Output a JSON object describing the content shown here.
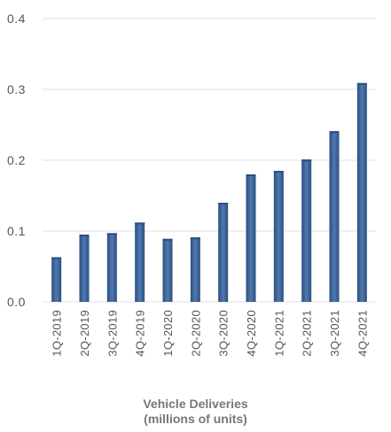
{
  "chart_data": {
    "type": "bar",
    "categories": [
      "1Q-2019",
      "2Q-2019",
      "3Q-2019",
      "4Q-2019",
      "1Q-2020",
      "2Q-2020",
      "3Q-2020",
      "4Q-2020",
      "1Q-2021",
      "2Q-2021",
      "3Q-2021",
      "4Q-2021"
    ],
    "values": [
      0.063,
      0.095,
      0.097,
      0.112,
      0.089,
      0.091,
      0.14,
      0.18,
      0.185,
      0.201,
      0.241,
      0.309
    ],
    "title": "",
    "xlabel_line1": "Vehicle Deliveries",
    "xlabel_line2": "(millions of units)",
    "ylabel": "",
    "ylim": [
      0,
      0.4
    ],
    "yticks": [
      "0.0",
      "0.1",
      "0.2",
      "0.3",
      "0.4"
    ],
    "grid": true,
    "bar_color": "#3d6498",
    "bar_color_light": "#4f79b0",
    "bar_color_dark": "#2c4f7e"
  }
}
